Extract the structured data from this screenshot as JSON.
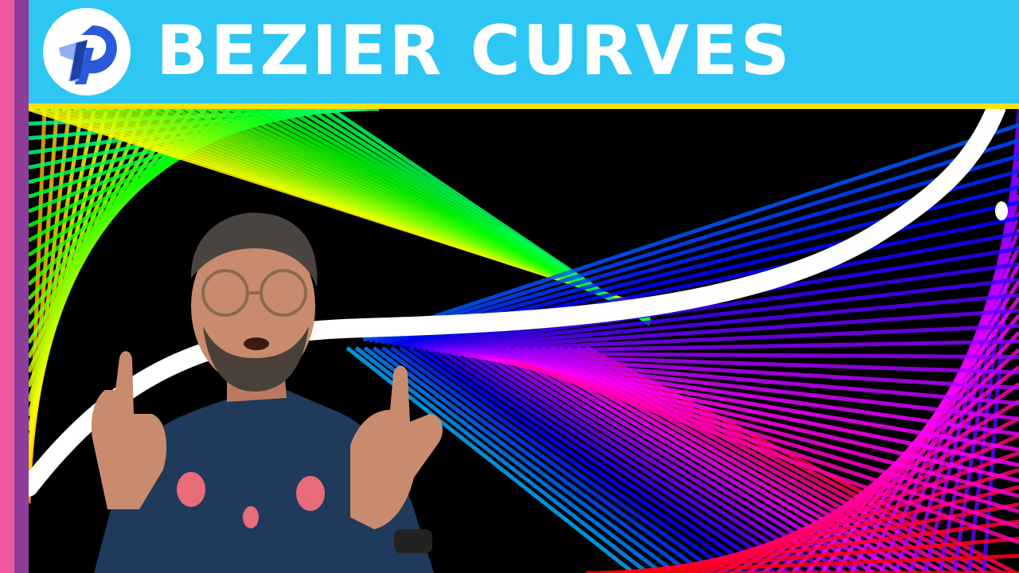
{
  "header": {
    "title": "BEZIER CURVES",
    "background_color": "#2ec6f3",
    "underline_color": "#f7e300"
  },
  "logo": {
    "icon": "creative-coding-logo-icon"
  },
  "sidebar_stripes": [
    "#ef5aa5",
    "#8e3e9a"
  ],
  "artwork": {
    "description_icon": "rainbow-bezier-string-art-icon",
    "curve_color": "#ffffff"
  }
}
